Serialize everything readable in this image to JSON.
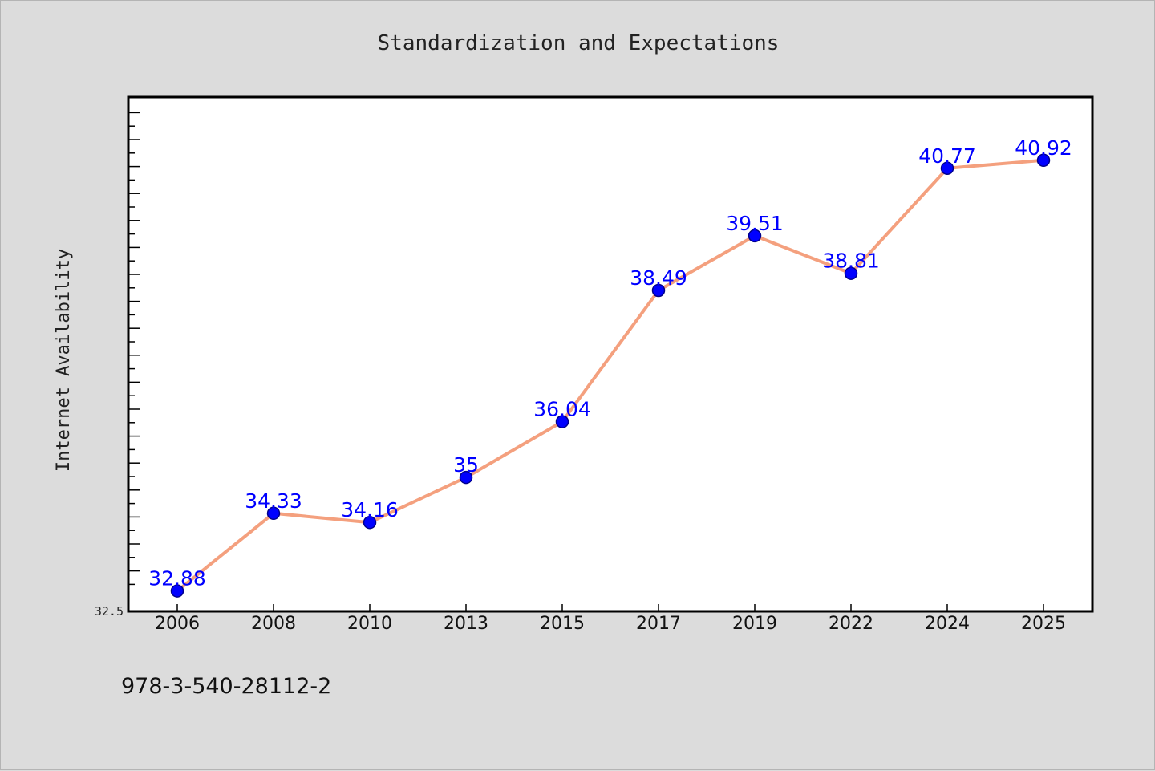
{
  "chart_data": {
    "type": "line",
    "title": "Standardization and Expectations",
    "xlabel": "",
    "ylabel": "Internet Availability",
    "categories": [
      "2006",
      "2008",
      "2010",
      "2013",
      "2015",
      "2017",
      "2019",
      "2022",
      "2024",
      "2025"
    ],
    "series": [
      {
        "values": [
          32.88,
          34.33,
          34.16,
          35,
          36.04,
          38.49,
          39.51,
          38.81,
          40.77,
          40.92
        ],
        "labels": [
          "32.88",
          "34.33",
          "34.16",
          "35",
          "36.04",
          "38.49",
          "39.51",
          "38.81",
          "40.77",
          "40.92"
        ]
      }
    ],
    "ylim": [
      32.5,
      42.1
    ],
    "y_tick_labels": [
      "32.5"
    ],
    "grid": false,
    "legend": "none",
    "colors": {
      "line": "#f4a07e",
      "marker": "#0000ff",
      "marker_edge": "#00008b",
      "label": "#0000ff",
      "plot_bg": "#ffffff",
      "figure_bg": "#dcdcdc"
    }
  },
  "footer": {
    "isbn": "978-3-540-28112-2"
  }
}
